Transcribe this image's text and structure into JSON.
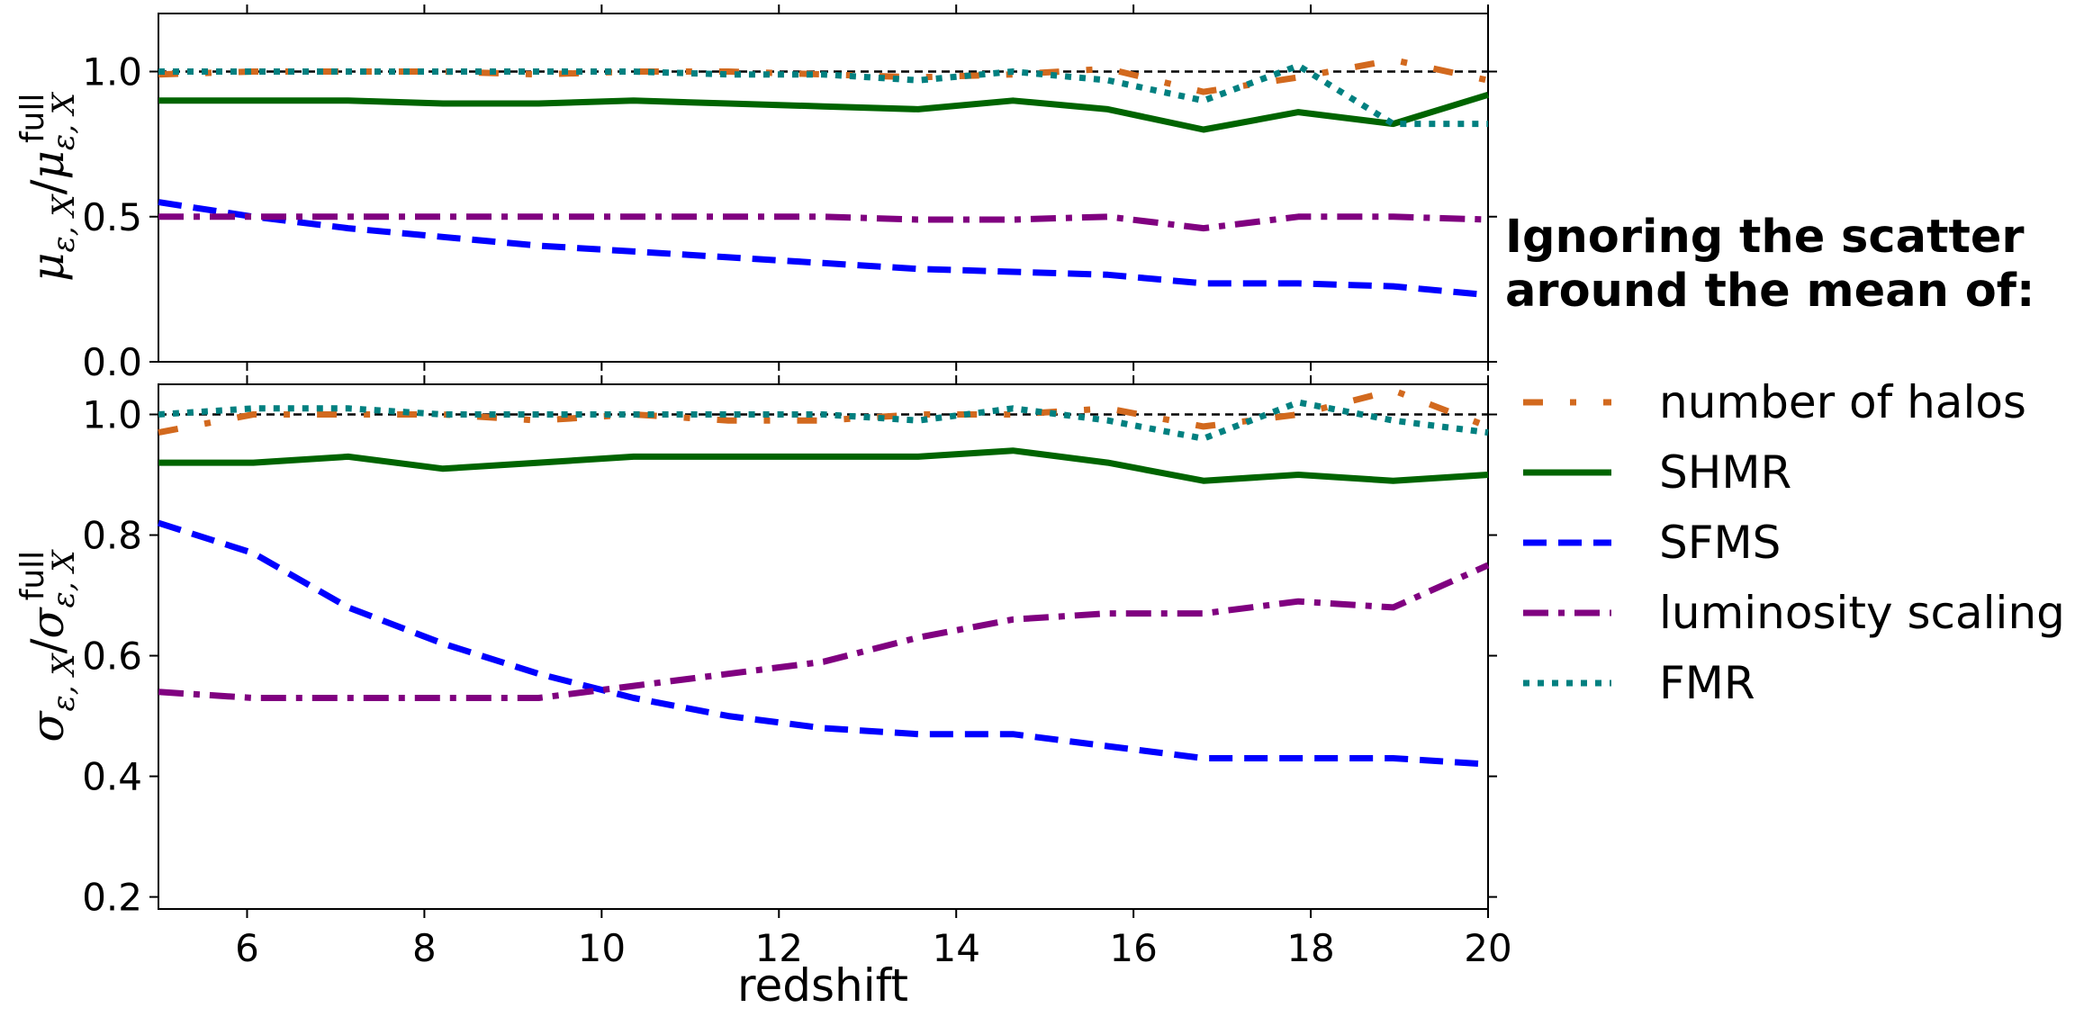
{
  "chart_data": [
    {
      "type": "line",
      "panel": "top",
      "ylabel": "μ_{ε,X} / μ_{ε,X}^{full}",
      "xlabel": "",
      "xlim": [
        5,
        20
      ],
      "ylim": [
        0.0,
        1.2
      ],
      "yticks": [
        "0.0",
        "0.5",
        "1.0"
      ],
      "reference_line": {
        "y": 1.0,
        "style": "dashed",
        "color": "#000000"
      },
      "series": [
        {
          "name": "number of halos",
          "color": "#d2691e",
          "style": "dashdotdot",
          "x": [
            5,
            6.07,
            7.14,
            8.21,
            9.29,
            10.36,
            11.43,
            12.5,
            13.57,
            14.64,
            15.71,
            16.79,
            17.86,
            18.93,
            20
          ],
          "y": [
            0.99,
            1.0,
            1.0,
            1.0,
            0.99,
            1.0,
            1.0,
            0.99,
            0.98,
            0.99,
            1.01,
            0.93,
            0.98,
            1.04,
            0.97
          ]
        },
        {
          "name": "SHMR",
          "color": "#006400",
          "style": "solid",
          "x": [
            5,
            6.07,
            7.14,
            8.21,
            9.29,
            10.36,
            11.43,
            12.5,
            13.57,
            14.64,
            15.71,
            16.79,
            17.86,
            18.93,
            20
          ],
          "y": [
            0.9,
            0.9,
            0.9,
            0.89,
            0.89,
            0.9,
            0.89,
            0.88,
            0.87,
            0.9,
            0.87,
            0.8,
            0.86,
            0.82,
            0.92
          ]
        },
        {
          "name": "SFMS",
          "color": "#0000ff",
          "style": "dashed",
          "x": [
            5,
            6.07,
            7.14,
            8.21,
            9.29,
            10.36,
            11.43,
            12.5,
            13.57,
            14.64,
            15.71,
            16.79,
            17.86,
            18.93,
            20
          ],
          "y": [
            0.55,
            0.5,
            0.46,
            0.43,
            0.4,
            0.38,
            0.36,
            0.34,
            0.32,
            0.31,
            0.3,
            0.27,
            0.27,
            0.26,
            0.23
          ]
        },
        {
          "name": "luminosity scaling",
          "color": "#800080",
          "style": "dashdot",
          "x": [
            5,
            6.07,
            7.14,
            8.21,
            9.29,
            10.36,
            11.43,
            12.5,
            13.57,
            14.64,
            15.71,
            16.79,
            17.86,
            18.93,
            20
          ],
          "y": [
            0.5,
            0.5,
            0.5,
            0.5,
            0.5,
            0.5,
            0.5,
            0.5,
            0.49,
            0.49,
            0.5,
            0.46,
            0.5,
            0.5,
            0.49
          ]
        },
        {
          "name": "FMR",
          "color": "#008080",
          "style": "dotted",
          "x": [
            5,
            6.07,
            7.14,
            8.21,
            9.29,
            10.36,
            11.43,
            12.5,
            13.57,
            14.64,
            15.71,
            16.79,
            17.86,
            18.93,
            20
          ],
          "y": [
            1.0,
            1.0,
            1.0,
            1.0,
            1.0,
            1.0,
            0.99,
            0.99,
            0.97,
            1.0,
            0.97,
            0.9,
            1.02,
            0.82,
            0.82
          ]
        }
      ]
    },
    {
      "type": "line",
      "panel": "bottom",
      "ylabel": "σ_{ε,X} / σ_{ε,X}^{full}",
      "xlabel": "redshift",
      "xlim": [
        5,
        20
      ],
      "ylim": [
        0.18,
        1.05
      ],
      "xticks": [
        "6",
        "8",
        "10",
        "12",
        "14",
        "16",
        "18",
        "20"
      ],
      "yticks": [
        "0.2",
        "0.4",
        "0.6",
        "0.8",
        "1.0"
      ],
      "reference_line": {
        "y": 1.0,
        "style": "dashed",
        "color": "#000000"
      },
      "series": [
        {
          "name": "number of halos",
          "color": "#d2691e",
          "style": "dashdotdot",
          "x": [
            5,
            6.07,
            7.14,
            8.21,
            9.29,
            10.36,
            11.43,
            12.5,
            13.57,
            14.64,
            15.71,
            16.79,
            17.86,
            18.93,
            20
          ],
          "y": [
            0.97,
            1.0,
            1.0,
            1.0,
            0.99,
            1.0,
            0.99,
            0.99,
            1.0,
            1.0,
            1.01,
            0.98,
            1.0,
            1.04,
            0.98
          ]
        },
        {
          "name": "SHMR",
          "color": "#006400",
          "style": "solid",
          "x": [
            5,
            6.07,
            7.14,
            8.21,
            9.29,
            10.36,
            11.43,
            12.5,
            13.57,
            14.64,
            15.71,
            16.79,
            17.86,
            18.93,
            20
          ],
          "y": [
            0.92,
            0.92,
            0.93,
            0.91,
            0.92,
            0.93,
            0.93,
            0.93,
            0.93,
            0.94,
            0.92,
            0.89,
            0.9,
            0.89,
            0.9
          ]
        },
        {
          "name": "SFMS",
          "color": "#0000ff",
          "style": "dashed",
          "x": [
            5,
            6.07,
            7.14,
            8.21,
            9.29,
            10.36,
            11.43,
            12.5,
            13.57,
            14.64,
            15.71,
            16.79,
            17.86,
            18.93,
            20
          ],
          "y": [
            0.82,
            0.77,
            0.68,
            0.62,
            0.57,
            0.53,
            0.5,
            0.48,
            0.47,
            0.47,
            0.45,
            0.43,
            0.43,
            0.43,
            0.42
          ]
        },
        {
          "name": "luminosity scaling",
          "color": "#800080",
          "style": "dashdot",
          "x": [
            5,
            6.07,
            7.14,
            8.21,
            9.29,
            10.36,
            11.43,
            12.5,
            13.57,
            14.64,
            15.71,
            16.79,
            17.86,
            18.93,
            20
          ],
          "y": [
            0.54,
            0.53,
            0.53,
            0.53,
            0.53,
            0.55,
            0.57,
            0.59,
            0.63,
            0.66,
            0.67,
            0.67,
            0.69,
            0.68,
            0.75
          ]
        },
        {
          "name": "FMR",
          "color": "#008080",
          "style": "dotted",
          "x": [
            5,
            6.07,
            7.14,
            8.21,
            9.29,
            10.36,
            11.43,
            12.5,
            13.57,
            14.64,
            15.71,
            16.79,
            17.86,
            18.93,
            20
          ],
          "y": [
            1.0,
            1.01,
            1.01,
            1.0,
            1.0,
            1.0,
            1.0,
            1.0,
            0.99,
            1.01,
            0.99,
            0.96,
            1.02,
            0.99,
            0.97
          ]
        }
      ]
    }
  ],
  "legend": {
    "title_line1": "Ignoring the scatter",
    "title_line2": "around the mean of:",
    "placement": "right",
    "entries": [
      "number of halos",
      "SHMR",
      "SFMS",
      "luminosity scaling",
      "FMR"
    ]
  },
  "top_ylabel_parts": {
    "mu": "μ",
    "sub": "ε, X",
    "slash": "/",
    "sup": "full"
  },
  "bottom_ylabel_parts": {
    "sigma": "σ",
    "sub": "ε, X",
    "slash": "/",
    "sup": "full"
  }
}
